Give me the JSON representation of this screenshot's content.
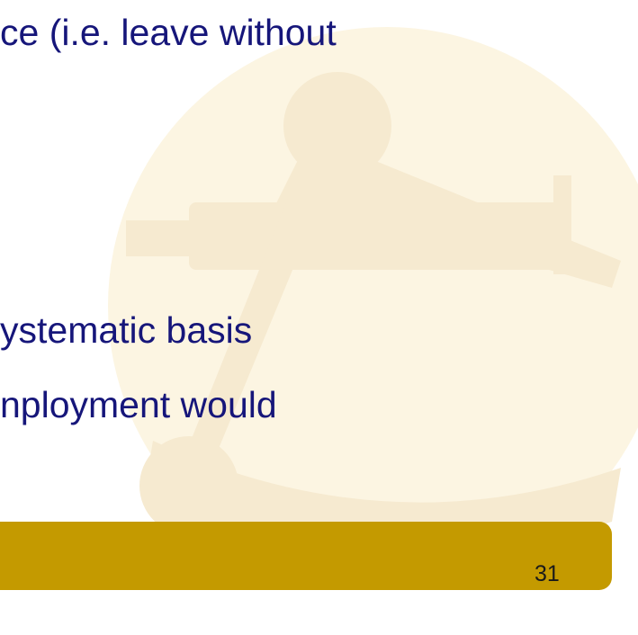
{
  "slide": {
    "lines": [
      "ce (i.e. leave without",
      "ystematic basis",
      "nployment would"
    ],
    "page_number": "31"
  }
}
